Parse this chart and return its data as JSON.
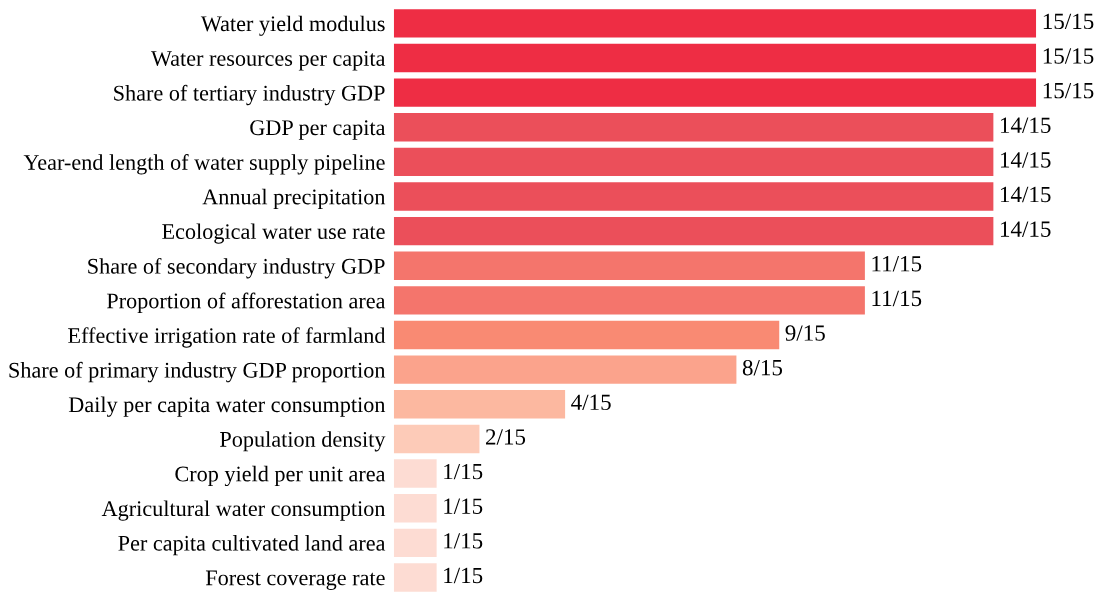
{
  "chart_data": {
    "type": "bar",
    "orientation": "horizontal",
    "categories": [
      "Water yield modulus",
      "Water resources per capita",
      "Share of tertiary industry GDP",
      "GDP per capita",
      "Year-end length of water supply pipeline",
      "Annual precipitation",
      "Ecological water use rate",
      "Share of secondary industry GDP",
      "Proportion of afforestation area",
      "Effective irrigation rate of farmland",
      "Share of primary industry GDP proportion",
      "Daily per capita water consumption",
      "Population density",
      "Crop yield per unit area",
      "Agricultural water consumption",
      "Per capita cultivated land area",
      "Forest coverage rate"
    ],
    "values": [
      15,
      15,
      15,
      14,
      14,
      14,
      14,
      11,
      11,
      9,
      8,
      4,
      2,
      1,
      1,
      1,
      1
    ],
    "value_labels": [
      "15/15",
      "15/15",
      "15/15",
      "14/15",
      "14/15",
      "14/15",
      "14/15",
      "11/15",
      "11/15",
      "9/15",
      "8/15",
      "4/15",
      "2/15",
      "1/15",
      "1/15",
      "1/15",
      "1/15"
    ],
    "colors": [
      "#ee2d44",
      "#ee2d44",
      "#ee2d44",
      "#eb4f5a",
      "#eb4f5a",
      "#eb4f5a",
      "#eb4f5a",
      "#f4756c",
      "#f4756c",
      "#f98a73",
      "#fba38c",
      "#fcb8a0",
      "#fdcbb8",
      "#fddcd3",
      "#fddcd3",
      "#fddcd3",
      "#fddcd3"
    ],
    "grid": false,
    "legend": false,
    "tick_labels": "y"
  }
}
